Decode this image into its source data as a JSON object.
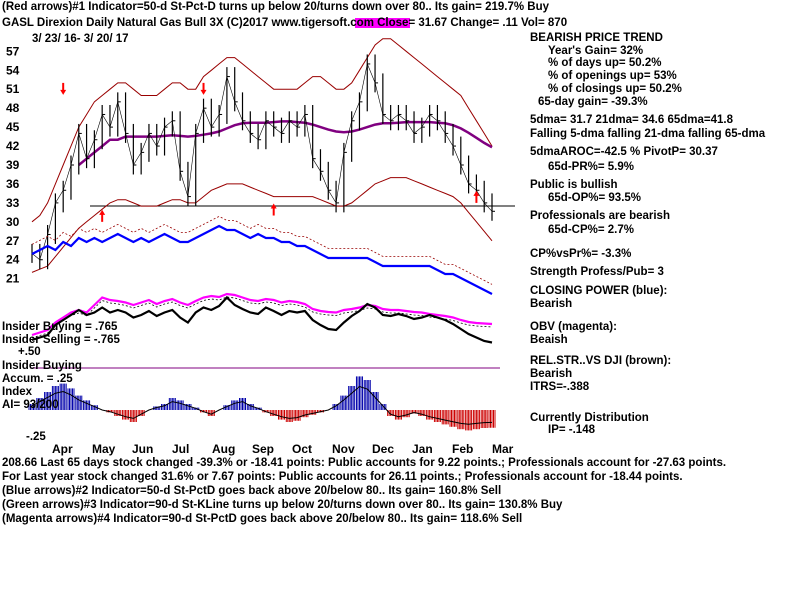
{
  "header": {
    "line1": "(Red arrows)#1 Indicator=50-d St-Pct-D turns up below 20/turns down over 80.. Its gain= 219.7% Buy",
    "line2": "GASL  Direxion Daily Natural Gas Bull 3X  (C)2017 www.tigersoft.com     Close=  31.67  Change= .11 Vol= 870",
    "date_range": "3/ 23/ 16-  3/ 20/ 17"
  },
  "stats": {
    "trend_title": "BEARISH PRICE TREND",
    "years_gain": "Year's Gain= 32%",
    "days_up": "% of days up= 50.2%",
    "openings_up": "% of openings up= 53%",
    "closings_up": "% of closings up= 50.2%",
    "gain65": "65-day gain= -39.3%",
    "dma": "5dma= 31.7  21dma= 34.6  65dma=41.8",
    "falling": "Falling 5-dma  falling 21-dma  falling 65-dma",
    "aroc": "5dmaAROC=-42.5  %  PivotP= 30.37",
    "pr65": "65d-PR%= 5.9%",
    "public": "Public is bullish",
    "op65": "65d-OP%= 93.5%",
    "professionals": "Professionals are bearish",
    "cp65": "65d-CP%= 2.7%",
    "cpvspr": "CP%vsPr%= -3.3%",
    "strength": "Strength Profess/Pub= 3",
    "cp_label": "CLOSING POWER (blue):",
    "cp_value": "Bearish",
    "obv_label": "OBV (magenta):",
    "obv_value": "Beaish",
    "rel_label": "REL.STR..VS DJI (brown):",
    "rel_value": "Bearish",
    "itrs": "ITRS=-.388",
    "dist_label": "Currently Distribution",
    "ip": "IP= -.148"
  },
  "left_labels": {
    "insider_buying_1": "Insider Buying",
    "insider_buying_1_val": "= .765",
    "insider_selling": "Insider Selling",
    "insider_selling_val": "= -.765",
    "plus50": "+.50",
    "insider_buying_2": "Insider Buying",
    "accum": "Accum.",
    "accum_val": "= .25",
    "index": "Index",
    "ai": "AI= 93/200",
    "minus25": "-.25"
  },
  "footer": {
    "line1": "208.66   Last 65 days stock changed -39.3% or -18.41 points:  Public accounts for  9.22 points.;  Professionals account for -27.63 points.",
    "line2": "For Last year stock changed  31.6% or  7.67 points:  Public accounts for  26.11 points.;  Professionals account for -18.44 points.",
    "line3": "(Blue arrows)#2 Indicator=50-d St-PctD goes back above 20/below 80.. Its gain= 160.8% Sell",
    "line4": "(Green arrows)#3 Indicator=90-d St-KLine turns up below 20/turns down over 80.. Its gain= 130.8% Buy",
    "line5": "(Magenta arrows)#4 Indicator=90-d St-PctD goes back above 20/below 80.. Its gain= 118.6% Sell"
  },
  "colors": {
    "price": "#000000",
    "bands": "#990000",
    "ma65": "#800080",
    "closing_power": "#0000ff",
    "obv": "#ff00ff",
    "rel_strength": "#8b4513",
    "accum_pos": "#0000aa",
    "accum_neg": "#cc0000",
    "arrows_red": "#ff0000",
    "arrows_magenta": "#ff00ff"
  },
  "chart_data": {
    "type": "line",
    "title": "GASL  Direxion Daily Natural Gas Bull 3X",
    "y_ticks": [
      57,
      54,
      51,
      48,
      45,
      42,
      39,
      36,
      33,
      30,
      27,
      24,
      21
    ],
    "x_ticks": [
      "Apr",
      "May",
      "Jun",
      "Jul",
      "Aug",
      "Sep",
      "Oct",
      "Nov",
      "Dec",
      "Jan",
      "Feb",
      "Mar"
    ],
    "ylim": [
      20,
      58
    ],
    "grid": false,
    "price_close": [
      25,
      24,
      28,
      33,
      35,
      39,
      44,
      40,
      43,
      47,
      45,
      49,
      44,
      39,
      41,
      44,
      42,
      45,
      46,
      38,
      34,
      44,
      48,
      45,
      47,
      53,
      49,
      46,
      44,
      43,
      46,
      45,
      44,
      46,
      45,
      47,
      40,
      38,
      35,
      33,
      41,
      46,
      49,
      55,
      52,
      47,
      46,
      47,
      46,
      44,
      45,
      47,
      46,
      44,
      42,
      39,
      36,
      35,
      33,
      31.67
    ],
    "sma65": [
      null,
      null,
      null,
      null,
      null,
      null,
      39,
      40,
      41,
      42,
      43,
      43,
      43.5,
      43.5,
      43.5,
      43.5,
      43.5,
      43.6,
      43.7,
      43.6,
      43.5,
      43.6,
      43.8,
      44,
      44.3,
      44.8,
      45.3,
      45.6,
      45.7,
      45.7,
      45.7,
      45.8,
      45.9,
      45.9,
      45.8,
      45.7,
      45.4,
      45,
      44.6,
      44.3,
      44.2,
      44.3,
      44.6,
      45,
      45.4,
      45.6,
      45.6,
      45.7,
      45.8,
      45.8,
      45.8,
      45.8,
      45.7,
      45.6,
      45.3,
      44.8,
      44.1,
      43.3,
      42.5,
      41.8
    ],
    "upper_band": [
      30,
      31,
      33,
      36,
      39,
      42,
      45,
      47,
      49,
      50,
      51,
      52,
      52,
      51,
      50,
      50,
      50,
      51,
      52,
      52,
      51,
      51,
      53,
      54,
      55,
      56,
      56,
      55,
      54,
      53,
      52,
      51,
      51,
      51,
      51,
      52,
      53,
      53,
      52,
      51,
      51,
      52,
      54,
      56,
      58,
      59,
      59,
      58,
      57,
      56,
      55,
      54,
      53,
      52,
      51,
      50,
      48,
      46,
      44,
      42
    ],
    "lower_band": [
      22,
      22.5,
      23,
      24.5,
      26,
      27.5,
      29,
      30,
      31,
      32,
      33,
      33.5,
      33.5,
      33,
      32.5,
      32.5,
      32.5,
      33,
      33.5,
      33.5,
      33,
      33,
      34,
      35,
      35.5,
      36,
      36,
      36,
      35.5,
      35,
      34.5,
      34,
      34,
      34,
      34,
      34,
      34,
      33.5,
      33,
      32.5,
      32.5,
      33,
      34,
      35,
      36,
      36.5,
      37,
      37,
      37,
      36.5,
      36,
      35.5,
      35,
      34.5,
      34,
      33,
      31.5,
      30,
      28.5,
      27
    ],
    "closing_power": [
      24,
      24.5,
      25,
      24.5,
      25.5,
      25,
      26,
      25.5,
      26,
      25.5,
      26,
      26.5,
      26,
      25.5,
      26,
      25.5,
      26,
      26.5,
      26,
      25.5,
      25.5,
      26,
      26.5,
      27,
      27.5,
      27,
      27,
      26.5,
      26,
      26.5,
      26,
      26,
      25.5,
      25.5,
      25,
      25,
      24.5,
      24,
      23.5,
      23.5,
      23.5,
      23.5,
      23.5,
      23.5,
      23,
      22.5,
      22.5,
      22.5,
      22.5,
      22.5,
      22.5,
      22.5,
      22,
      21.5,
      21.5,
      21,
      20.5,
      20,
      19.5,
      19
    ],
    "obv": [
      0.1,
      0.15,
      0.2,
      0.35,
      0.45,
      0.55,
      0.6,
      0.55,
      0.7,
      0.85,
      0.8,
      0.78,
      0.75,
      0.7,
      0.75,
      0.8,
      0.72,
      0.78,
      0.82,
      0.75,
      0.7,
      0.78,
      0.85,
      0.88,
      0.86,
      0.92,
      0.9,
      0.85,
      0.8,
      0.78,
      0.82,
      0.8,
      0.75,
      0.78,
      0.76,
      0.72,
      0.62,
      0.58,
      0.56,
      0.55,
      0.6,
      0.62,
      0.65,
      0.7,
      0.68,
      0.62,
      0.6,
      0.6,
      0.58,
      0.56,
      0.55,
      0.52,
      0.5,
      0.48,
      0.45,
      0.4,
      0.36,
      0.34,
      0.33,
      0.32
    ],
    "rel_strength": [
      0.0,
      0.05,
      0.1,
      0.3,
      0.4,
      0.5,
      0.6,
      0.5,
      0.55,
      0.65,
      0.55,
      0.6,
      0.55,
      0.45,
      0.5,
      0.58,
      0.48,
      0.55,
      0.6,
      0.45,
      0.35,
      0.55,
      0.65,
      0.6,
      0.68,
      0.85,
      0.7,
      0.62,
      0.55,
      0.52,
      0.65,
      0.58,
      0.5,
      0.58,
      0.55,
      0.58,
      0.4,
      0.3,
      0.22,
      0.2,
      0.35,
      0.48,
      0.58,
      0.72,
      0.65,
      0.5,
      0.48,
      0.52,
      0.48,
      0.42,
      0.45,
      0.5,
      0.45,
      0.4,
      0.32,
      0.22,
      0.12,
      0.05,
      -0.02,
      -0.05
    ],
    "accum_index": [
      0.05,
      0.1,
      0.15,
      0.2,
      0.22,
      0.18,
      0.12,
      0.08,
      0.04,
      0.0,
      -0.02,
      -0.05,
      -0.08,
      -0.1,
      -0.05,
      0.0,
      0.03,
      0.05,
      0.1,
      0.08,
      0.05,
      0.02,
      -0.02,
      -0.05,
      0.0,
      0.04,
      0.08,
      0.1,
      0.05,
      0.02,
      -0.02,
      -0.05,
      -0.08,
      -0.1,
      -0.09,
      -0.06,
      -0.04,
      -0.02,
      0.0,
      0.05,
      0.12,
      0.2,
      0.28,
      0.25,
      0.15,
      0.05,
      -0.05,
      -0.08,
      -0.06,
      -0.03,
      -0.05,
      -0.08,
      -0.1,
      -0.12,
      -0.14,
      -0.16,
      -0.17,
      -0.16,
      -0.15,
      -0.148
    ]
  }
}
